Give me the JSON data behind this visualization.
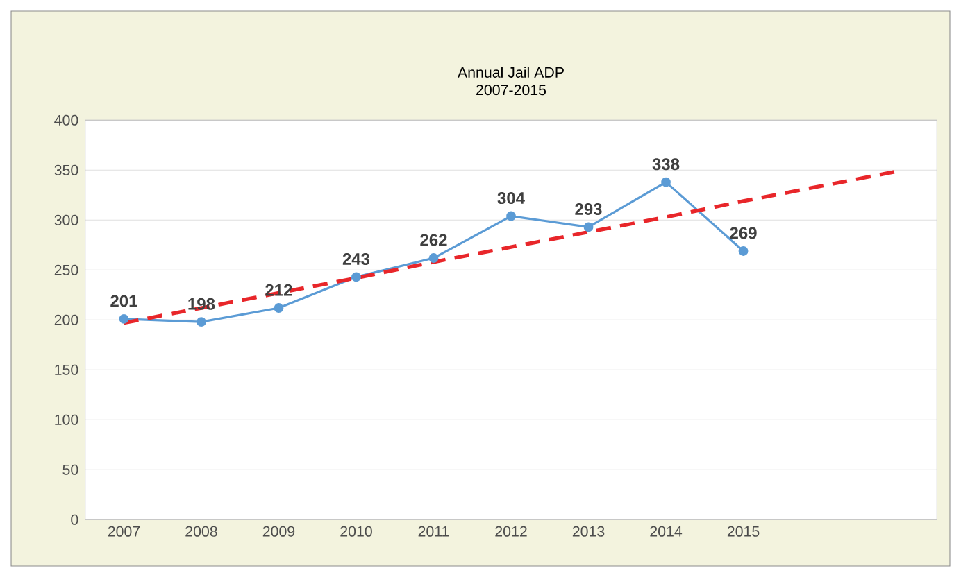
{
  "chart_data": {
    "type": "line",
    "title": "Annual Jail ADP",
    "subtitle": "2007-2015",
    "categories": [
      "2007",
      "2008",
      "2009",
      "2010",
      "2011",
      "2012",
      "2013",
      "2014",
      "2015",
      null,
      null
    ],
    "series": [
      {
        "color": "#5b9bd5",
        "values": [
          201,
          198,
          212,
          243,
          262,
          304,
          293,
          338,
          269,
          null,
          null
        ],
        "value_labels": [
          "201",
          "198",
          "212",
          "243",
          "262",
          "304",
          "293",
          "338",
          "269",
          null,
          null
        ],
        "marker": "circle",
        "line_style": "solid"
      },
      {
        "color": "#e8262a",
        "values": [
          197,
          212,
          227,
          242,
          258,
          273,
          288,
          303,
          319,
          334,
          349
        ],
        "marker": "none",
        "line_style": "dashed"
      }
    ],
    "ylim": [
      0,
      400
    ],
    "yticks": [
      0,
      50,
      100,
      150,
      200,
      250,
      300,
      350,
      400
    ],
    "grid": "y"
  }
}
